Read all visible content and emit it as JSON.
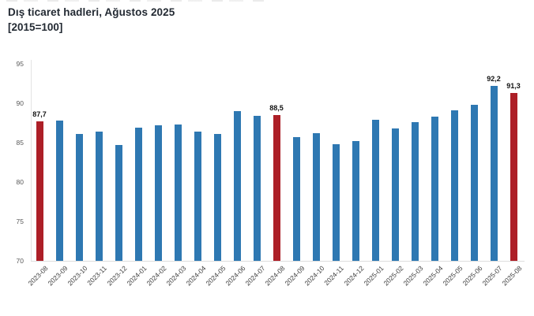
{
  "header": {
    "title": "Dış ticaret hadleri, Ağustos 2025",
    "subtitle": "[2015=100]"
  },
  "chart_data": {
    "type": "bar",
    "title": "Dış ticaret hadleri, Ağustos 2025",
    "subtitle": "[2015=100]",
    "categories": [
      "2023-08",
      "2023-09",
      "2023-10",
      "2023-11",
      "2023-12",
      "2024-01",
      "2024-02",
      "2024-03",
      "2024-04",
      "2024-05",
      "2024-06",
      "2024-07",
      "2024-08",
      "2024-09",
      "2024-10",
      "2024-11",
      "2024-12",
      "2025-01",
      "2025-02",
      "2025-03",
      "2025-04",
      "2025-05",
      "2025-06",
      "2025-07",
      "2025-08"
    ],
    "values": [
      87.7,
      87.8,
      86.1,
      86.4,
      84.7,
      86.9,
      87.2,
      87.3,
      86.4,
      86.1,
      89.0,
      88.4,
      88.5,
      85.7,
      86.2,
      84.8,
      85.2,
      87.9,
      86.8,
      87.6,
      88.3,
      89.1,
      89.8,
      92.2,
      91.3
    ],
    "highlight_indices": [
      0,
      12,
      24
    ],
    "data_labels": [
      {
        "index": 0,
        "text": "87,7"
      },
      {
        "index": 12,
        "text": "88,5"
      },
      {
        "index": 23,
        "text": "92,2"
      },
      {
        "index": 24,
        "text": "91,3"
      }
    ],
    "ylim": [
      70,
      95
    ],
    "yticks": [
      70,
      75,
      80,
      85,
      90,
      95
    ],
    "grid": false,
    "legend": false,
    "colors": {
      "bar": "#2e78b2",
      "highlight": "#ad1f27"
    }
  }
}
